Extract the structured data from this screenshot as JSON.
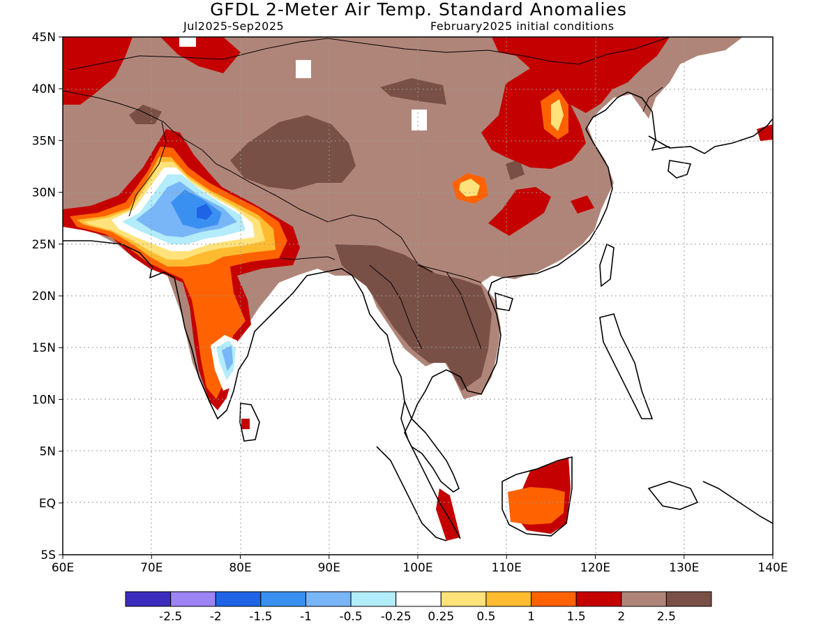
{
  "title": "GFDL 2-Meter Air Temp. Standard Anomalies",
  "period": "Jul2025-Sep2025",
  "init": "February2025 initial conditions",
  "lon_labels": [
    "60E",
    "70E",
    "80E",
    "90E",
    "100E",
    "110E",
    "120E",
    "130E",
    "140E"
  ],
  "lat_labels": [
    "45N",
    "40N",
    "35N",
    "30N",
    "25N",
    "20N",
    "15N",
    "10N",
    "5N",
    "EQ",
    "5S"
  ],
  "colorbar": {
    "colors": [
      "#3c2dbf",
      "#9c84f5",
      "#1f64e6",
      "#3a90f0",
      "#79b6f7",
      "#b3ecfa",
      "#ffffff",
      "#ffe27a",
      "#ffbb30",
      "#ff6200",
      "#c40000",
      "#b08579",
      "#795046"
    ],
    "labels": [
      "-2.5",
      "-2",
      "-1.5",
      "-1",
      "-0.5",
      "-0.25",
      "0.25",
      "0.5",
      "1",
      "1.5",
      "2",
      "2.5"
    ]
  },
  "colors": {
    "land_anomaly": "#b08579",
    "strong_warm": "#795046",
    "hot": "#c40000",
    "cool": "#79b6f7"
  }
}
